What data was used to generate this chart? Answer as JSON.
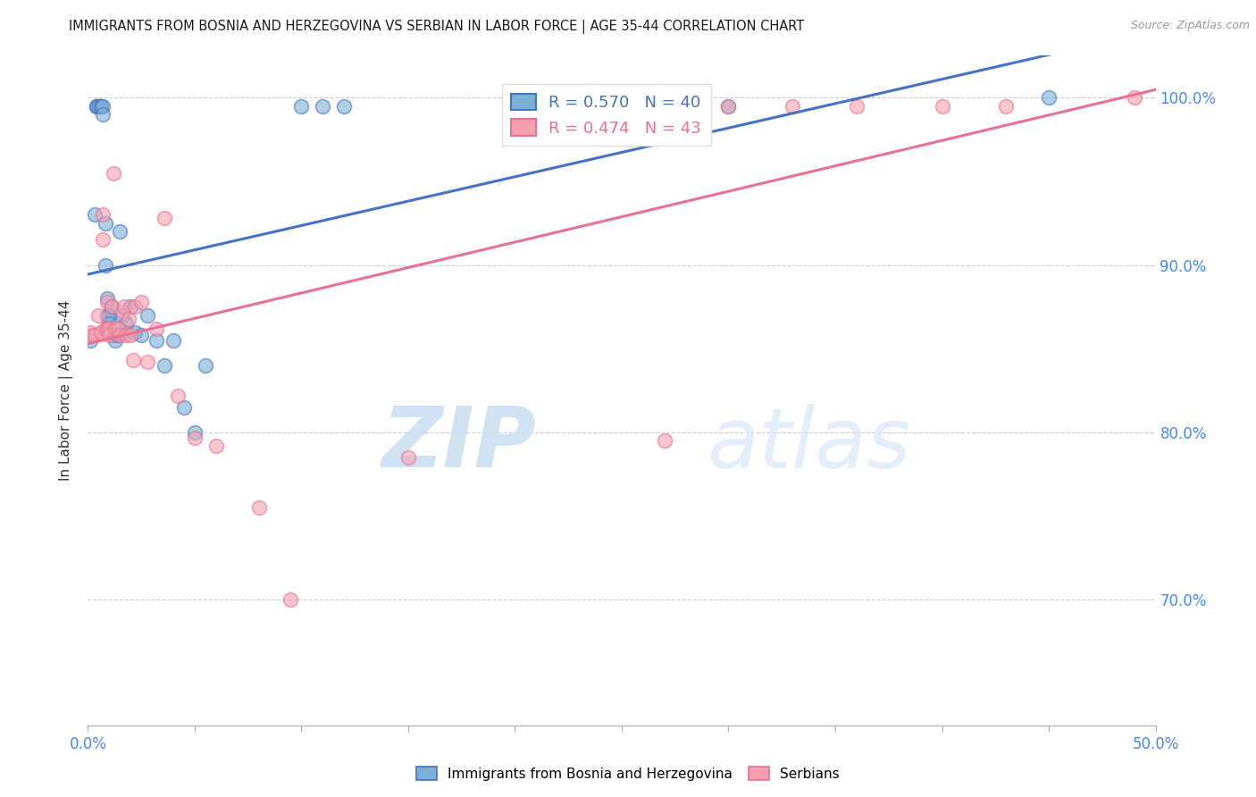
{
  "title": "IMMIGRANTS FROM BOSNIA AND HERZEGOVINA VS SERBIAN IN LABOR FORCE | AGE 35-44 CORRELATION CHART",
  "source": "Source: ZipAtlas.com",
  "ylabel": "In Labor Force | Age 35-44",
  "xlim": [
    0.0,
    0.5
  ],
  "ylim": [
    0.625,
    1.025
  ],
  "ytick_positions": [
    0.7,
    0.8,
    0.9,
    1.0
  ],
  "ytick_labels": [
    "70.0%",
    "80.0%",
    "90.0%",
    "100.0%"
  ],
  "xtick_positions": [
    0.0,
    0.05,
    0.1,
    0.15,
    0.2,
    0.25,
    0.3,
    0.35,
    0.4,
    0.45,
    0.5
  ],
  "xticklabel_left": "0.0%",
  "xticklabel_right": "50.0%",
  "blue_R": 0.57,
  "blue_N": 40,
  "pink_R": 0.474,
  "pink_N": 43,
  "blue_color": "#7BAFD4",
  "pink_color": "#F4A0B0",
  "blue_edge_color": "#4472C4",
  "pink_edge_color": "#E87090",
  "blue_line_color": "#4472C4",
  "pink_line_color": "#E87090",
  "blue_label": "Immigrants from Bosnia and Herzegovina",
  "pink_label": "Serbians",
  "blue_x": [
    0.001,
    0.003,
    0.004,
    0.004,
    0.005,
    0.006,
    0.006,
    0.007,
    0.007,
    0.008,
    0.008,
    0.009,
    0.009,
    0.01,
    0.01,
    0.011,
    0.011,
    0.012,
    0.013,
    0.014,
    0.015,
    0.016,
    0.017,
    0.018,
    0.02,
    0.022,
    0.025,
    0.028,
    0.032,
    0.036,
    0.04,
    0.045,
    0.05,
    0.055,
    0.1,
    0.11,
    0.12,
    0.2,
    0.3,
    0.45
  ],
  "blue_y": [
    0.855,
    0.93,
    0.995,
    0.995,
    0.995,
    0.995,
    0.995,
    0.995,
    0.99,
    0.925,
    0.9,
    0.88,
    0.87,
    0.87,
    0.865,
    0.86,
    0.875,
    0.858,
    0.855,
    0.858,
    0.92,
    0.87,
    0.86,
    0.865,
    0.875,
    0.86,
    0.858,
    0.87,
    0.855,
    0.84,
    0.855,
    0.815,
    0.8,
    0.84,
    0.995,
    0.995,
    0.995,
    0.995,
    0.995,
    1.0
  ],
  "pink_x": [
    0.001,
    0.002,
    0.003,
    0.005,
    0.006,
    0.007,
    0.007,
    0.008,
    0.009,
    0.009,
    0.01,
    0.01,
    0.011,
    0.012,
    0.013,
    0.014,
    0.015,
    0.016,
    0.017,
    0.018,
    0.019,
    0.02,
    0.021,
    0.022,
    0.025,
    0.028,
    0.032,
    0.036,
    0.042,
    0.05,
    0.06,
    0.08,
    0.095,
    0.15,
    0.2,
    0.23,
    0.27,
    0.3,
    0.33,
    0.36,
    0.4,
    0.43,
    0.49
  ],
  "pink_y": [
    0.86,
    0.858,
    0.858,
    0.87,
    0.86,
    0.93,
    0.915,
    0.862,
    0.862,
    0.878,
    0.862,
    0.858,
    0.875,
    0.955,
    0.862,
    0.862,
    0.858,
    0.872,
    0.875,
    0.858,
    0.868,
    0.858,
    0.843,
    0.875,
    0.878,
    0.842,
    0.862,
    0.928,
    0.822,
    0.797,
    0.792,
    0.755,
    0.7,
    0.785,
    0.995,
    0.995,
    0.795,
    0.995,
    0.995,
    0.995,
    0.995,
    0.995,
    1.0
  ],
  "watermark_zip": "ZIP",
  "watermark_atlas": "atlas",
  "background_color": "#FFFFFF",
  "grid_color": "#CCCCCC"
}
